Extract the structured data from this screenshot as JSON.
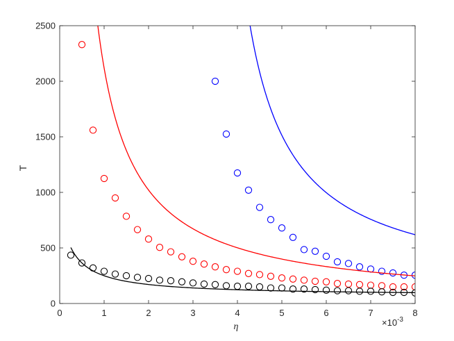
{
  "chart_data": {
    "type": "line",
    "title": "",
    "xlabel": "η",
    "ylabel": "T",
    "x_multiplier_label": "×10",
    "x_multiplier_exponent": "-3",
    "xlim": [
      0,
      8
    ],
    "ylim": [
      0,
      2500
    ],
    "x_ticks": [
      0,
      1,
      2,
      3,
      4,
      5,
      6,
      7,
      8
    ],
    "y_ticks": [
      0,
      500,
      1000,
      1500,
      2000,
      2500
    ],
    "x_tick_labels": [
      "0",
      "1",
      "2",
      "3",
      "4",
      "5",
      "6",
      "7",
      "8"
    ],
    "y_tick_labels": [
      "0",
      "500",
      "1000",
      "1500",
      "2000",
      "2500"
    ],
    "grid": false,
    "legend": "none",
    "series": [
      {
        "color": "#0000ff",
        "curve": {
          "x_start": 3.45,
          "x_end": 8.0,
          "a": 2.46,
          "b": 3.26,
          "k": 100
        },
        "points_x": [
          3.5,
          3.75,
          4.0,
          4.25,
          4.5,
          4.75,
          5.0,
          5.25,
          5.5,
          5.75,
          6.0,
          6.25,
          6.5,
          6.75,
          7.0,
          7.25,
          7.5,
          7.75,
          8.0
        ],
        "points_y": [
          2000,
          1525,
          1175,
          1020,
          865,
          755,
          680,
          595,
          485,
          470,
          425,
          375,
          360,
          330,
          310,
          290,
          275,
          255,
          255
        ]
      },
      {
        "color": "#ff0000",
        "curve": {
          "x_start": 0.45,
          "x_end": 8.0,
          "a": 1.97,
          "b": 0.07,
          "k": 0
        },
        "points_x": [
          0.5,
          0.75,
          1.0,
          1.25,
          1.5,
          1.75,
          2.0,
          2.25,
          2.5,
          2.75,
          3.0,
          3.25,
          3.5,
          3.75,
          4.0,
          4.25,
          4.5,
          4.75,
          5.0,
          5.25,
          5.5,
          5.75,
          6.0,
          6.25,
          6.5,
          6.75,
          7.0,
          7.25,
          7.5,
          7.75,
          8.0
        ],
        "points_y": [
          2330,
          1560,
          1125,
          950,
          785,
          665,
          580,
          505,
          465,
          420,
          380,
          355,
          330,
          305,
          290,
          270,
          260,
          245,
          230,
          220,
          210,
          200,
          195,
          180,
          175,
          170,
          165,
          160,
          150,
          150,
          150
        ]
      },
      {
        "color": "#000000",
        "curve": {
          "x_start": 0.25,
          "x_end": 8.0,
          "a": 0.23,
          "b": -0.28,
          "k": 70
        },
        "points_x": [
          0.25,
          0.5,
          0.75,
          1.0,
          1.25,
          1.5,
          1.75,
          2.0,
          2.25,
          2.5,
          2.75,
          3.0,
          3.25,
          3.5,
          3.75,
          4.0,
          4.25,
          4.5,
          4.75,
          5.0,
          5.25,
          5.5,
          5.75,
          6.0,
          6.25,
          6.5,
          6.75,
          7.0,
          7.25,
          7.5,
          7.75,
          8.0
        ],
        "points_y": [
          435,
          365,
          320,
          290,
          265,
          250,
          235,
          225,
          210,
          205,
          195,
          185,
          175,
          170,
          160,
          155,
          155,
          150,
          140,
          140,
          130,
          130,
          125,
          120,
          115,
          115,
          110,
          110,
          105,
          100,
          100,
          95
        ]
      }
    ]
  }
}
